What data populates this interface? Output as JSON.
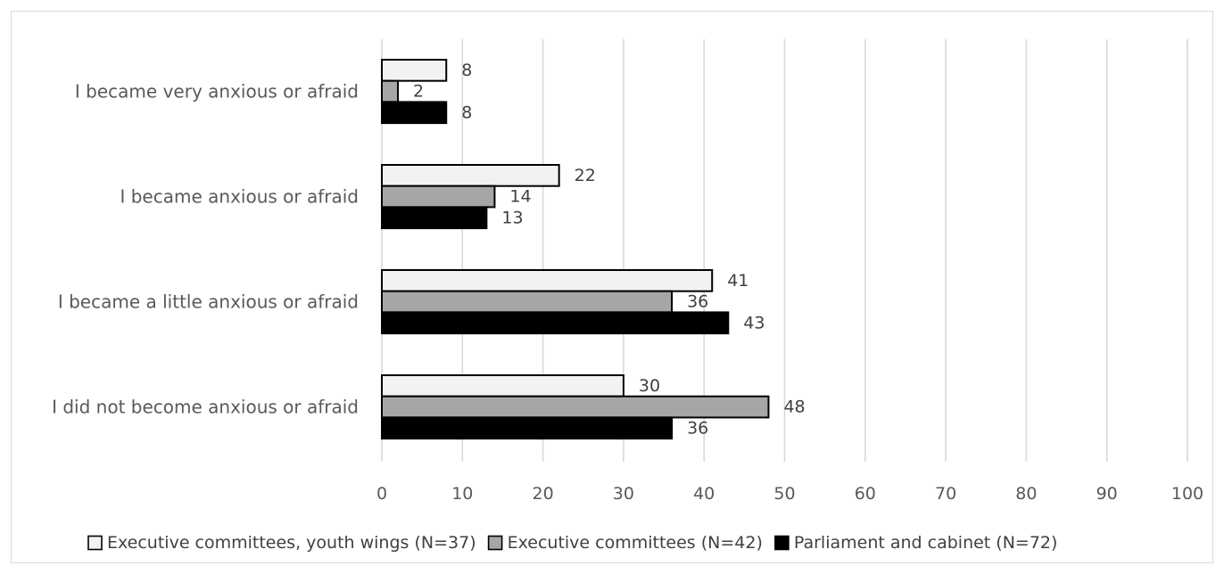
{
  "chart_data": {
    "type": "bar",
    "orientation": "horizontal",
    "categories": [
      "I became very anxious or afraid",
      "I became anxious or afraid",
      "I became a little anxious or afraid",
      "I did not become anxious or afraid"
    ],
    "series": [
      {
        "name": "Executive committees, youth wings (N=37)",
        "color": "#f2f2f2",
        "values": [
          8,
          22,
          41,
          30
        ]
      },
      {
        "name": "Executive committees (N=42)",
        "color": "#a6a6a6",
        "values": [
          2,
          14,
          36,
          48
        ]
      },
      {
        "name": "Parliament and cabinet (N=72)",
        "color": "#000000",
        "values": [
          8,
          13,
          43,
          36
        ]
      }
    ],
    "xlim": [
      0,
      100
    ],
    "x_ticks": [
      0,
      10,
      20,
      30,
      40,
      50,
      60,
      70,
      80,
      90,
      100
    ],
    "title": "",
    "xlabel": "",
    "ylabel": "",
    "grid": "vertical",
    "legend_position": "bottom",
    "data_labels": true
  }
}
